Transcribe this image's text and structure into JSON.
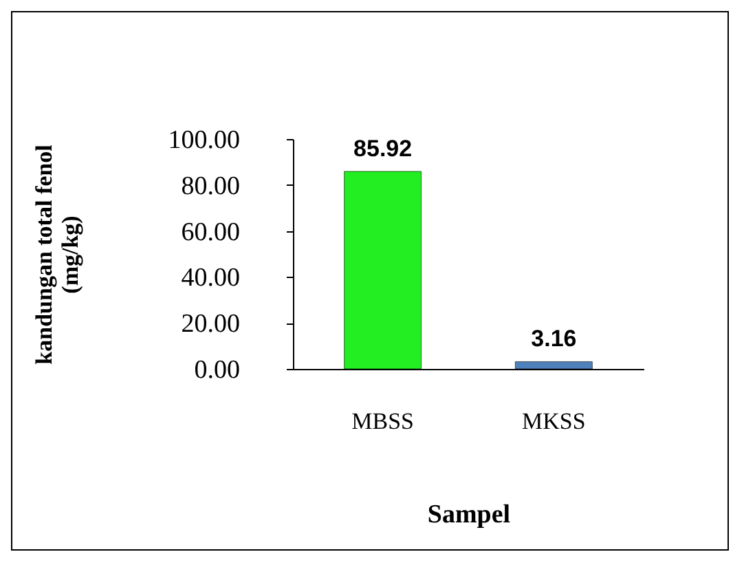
{
  "chart_data": {
    "type": "bar",
    "xlabel": "Sampel",
    "ylabel": "kandungan total fenol (mg/kg)",
    "categories": [
      "MBSS",
      "MKSS"
    ],
    "values": [
      85.92,
      3.16
    ],
    "colors": [
      "#22ee22",
      "#4f81bd"
    ],
    "ylim": [
      0,
      100
    ],
    "yticks": [
      {
        "value": 0,
        "label": "0.00"
      },
      {
        "value": 20,
        "label": "20.00"
      },
      {
        "value": 40,
        "label": "40.00"
      },
      {
        "value": 60,
        "label": "60.00"
      },
      {
        "value": 80,
        "label": "80.00"
      },
      {
        "value": 100,
        "label": "100.00"
      }
    ],
    "data_labels": true
  }
}
